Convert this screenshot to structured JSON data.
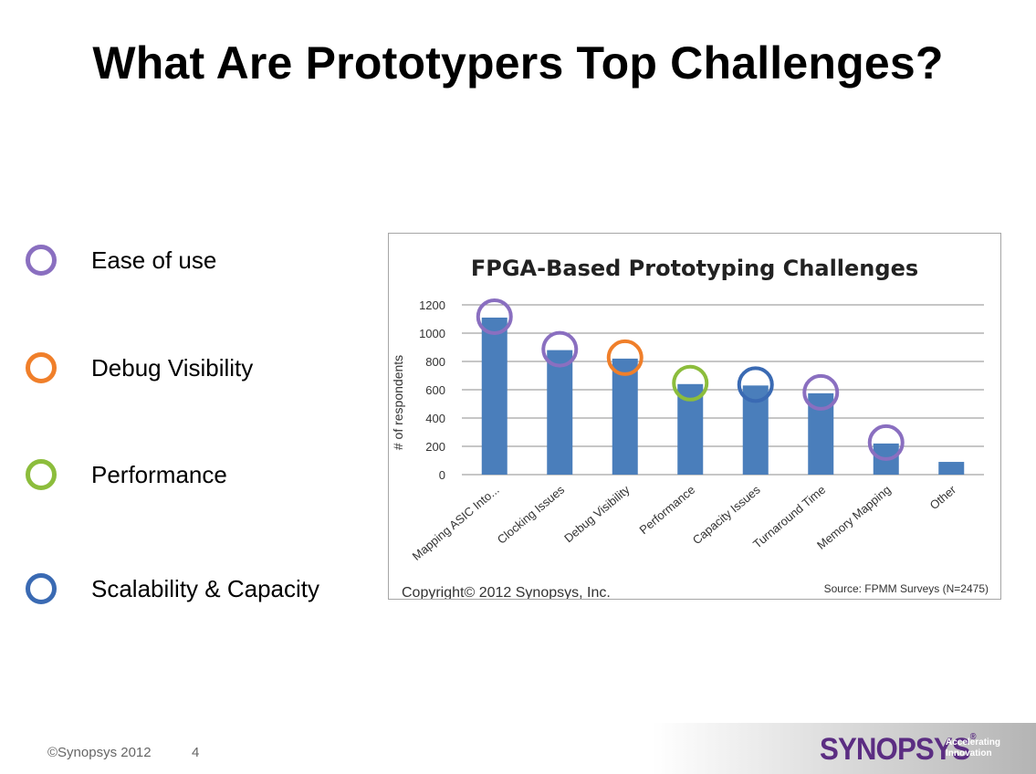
{
  "slide": {
    "title": "What Are Prototypers Top Challenges?",
    "footer_copyright": "©Synopsys 2012",
    "page_number": "4",
    "logo_text": "SYNOPSYS",
    "logo_mark": "®",
    "tagline_1": "Accelerating",
    "tagline_2": "Innovation"
  },
  "legend": [
    {
      "label": "Ease of use",
      "color": "#8a6fc0"
    },
    {
      "label": "Debug Visibility",
      "color": "#f07f2a"
    },
    {
      "label": "Performance",
      "color": "#8cbd3c"
    },
    {
      "label": "Scalability & Capacity",
      "color": "#3a6ab3"
    }
  ],
  "chart_data": {
    "type": "bar",
    "title": "FPGA-Based Prototyping Challenges",
    "ylabel": "# of respondents",
    "xlabel": "",
    "categories": [
      "Mapping ASIC Into...",
      "Clocking Issues",
      "Debug Visibility",
      "Performance",
      "Capacity Issues",
      "Turnaround Time",
      "Memory Mapping",
      "Other"
    ],
    "values": [
      1110,
      880,
      820,
      640,
      630,
      575,
      220,
      90
    ],
    "ylim": [
      0,
      1200
    ],
    "yticks": [
      0,
      200,
      400,
      600,
      800,
      1000,
      1200
    ],
    "grid": true,
    "bar_color": "#4a7ebb",
    "highlights": [
      "#8a6fc0",
      "#8a6fc0",
      "#f07f2a",
      "#8cbd3c",
      "#3a6ab3",
      "#8a6fc0",
      "#8a6fc0",
      null
    ],
    "copyright": "Copyright© 2012 Synopsys, Inc.",
    "source": "Source: FPMM Surveys (N=2475)"
  }
}
